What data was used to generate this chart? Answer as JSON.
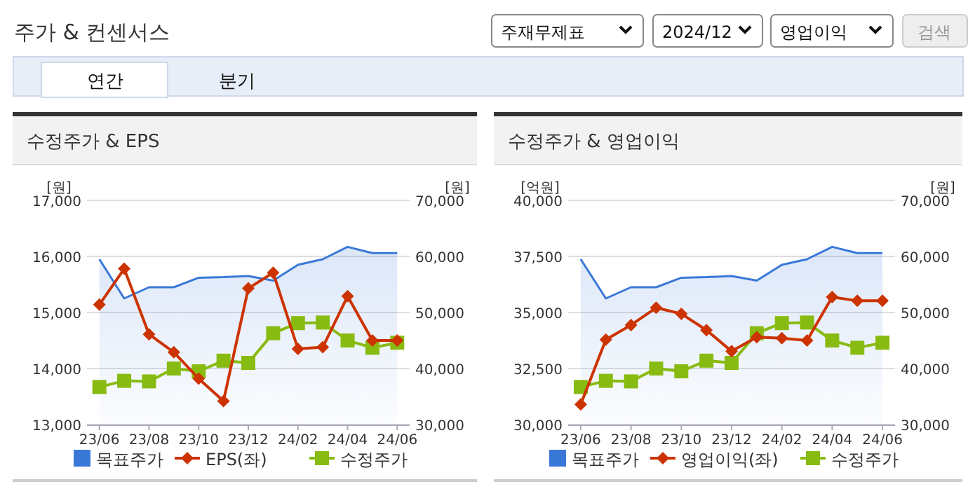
{
  "chart_data": [
    {
      "type": "other",
      "title": "주가 & 컨센서스",
      "annotations": [
        "주재무제표",
        "2024/12",
        "영업이익",
        "검색",
        "연간",
        "분기"
      ]
    },
    {
      "type": "line",
      "title": "수정주가 & EPS",
      "ylabel": "[원]",
      "y2label": "[원]",
      "categories": [
        "23/06",
        null,
        "23/08",
        null,
        "23/10",
        null,
        "23/12",
        null,
        "24/02",
        null,
        "24/04",
        null,
        "24/06"
      ],
      "ylim": [
        13000,
        17000
      ],
      "yticks": [
        {
          "value": 13000,
          "label": "13,000"
        },
        {
          "value": 14000,
          "label": "14,000"
        },
        {
          "value": 15000,
          "label": "15,000"
        },
        {
          "value": 16000,
          "label": "16,000"
        },
        {
          "value": 17000,
          "label": "17,000"
        }
      ],
      "y2lim": [
        30000,
        70000
      ],
      "y2ticks": [
        {
          "value": 30000,
          "label": "30,000"
        },
        {
          "value": 40000,
          "label": "40,000"
        },
        {
          "value": 50000,
          "label": "50,000"
        },
        {
          "value": 60000,
          "label": "60,000"
        },
        {
          "value": 70000,
          "label": "70,000"
        }
      ],
      "grid": "y",
      "legend": "bottom",
      "series": [
        {
          "name": "목표주가",
          "type": "area",
          "axis": "y2",
          "color": "#3a78d8",
          "values": [
            59500,
            52500,
            54500,
            54500,
            56200,
            56300,
            56500,
            55700,
            58500,
            59500,
            61700,
            60600,
            60600
          ]
        },
        {
          "name": "EPS(좌)",
          "type": "line",
          "marker": "diamond",
          "color": "#cc3300",
          "values": [
            15140,
            15780,
            14610,
            14290,
            13820,
            13420,
            15430,
            15710,
            14350,
            14380,
            15290,
            14500,
            14500
          ]
        },
        {
          "name": "수정주가",
          "type": "line",
          "marker": "square",
          "axis": "y2",
          "color": "#88bb11",
          "values": [
            36700,
            37800,
            37700,
            40000,
            39500,
            41400,
            41000,
            46300,
            48100,
            48200,
            45000,
            43700,
            44600
          ]
        }
      ]
    },
    {
      "type": "line",
      "title": "수정주가 & 영업이익",
      "ylabel": "[억원]",
      "y2label": "[원]",
      "categories": [
        "23/06",
        null,
        "23/08",
        null,
        "23/10",
        null,
        "23/12",
        null,
        "24/02",
        null,
        "24/04",
        null,
        "24/06"
      ],
      "ylim": [
        30000,
        40000
      ],
      "yticks": [
        {
          "value": 30000,
          "label": "30,000"
        },
        {
          "value": 32500,
          "label": "32,500"
        },
        {
          "value": 35000,
          "label": "35,000"
        },
        {
          "value": 37500,
          "label": "37,500"
        },
        {
          "value": 40000,
          "label": "40,000"
        }
      ],
      "y2lim": [
        30000,
        70000
      ],
      "y2ticks": [
        {
          "value": 30000,
          "label": "30,000"
        },
        {
          "value": 40000,
          "label": "40,000"
        },
        {
          "value": 50000,
          "label": "50,000"
        },
        {
          "value": 60000,
          "label": "60,000"
        },
        {
          "value": 70000,
          "label": "70,000"
        }
      ],
      "grid": "y",
      "legend": "bottom",
      "series": [
        {
          "name": "목표주가",
          "type": "area",
          "axis": "y2",
          "color": "#3a78d8",
          "values": [
            59500,
            52500,
            54500,
            54500,
            56200,
            56300,
            56500,
            55700,
            58500,
            59500,
            61700,
            60600,
            60600
          ]
        },
        {
          "name": "영업이익(좌)",
          "type": "line",
          "marker": "diamond",
          "color": "#cc3300",
          "values": [
            30900,
            33790,
            34440,
            35210,
            34940,
            34210,
            33270,
            33900,
            33850,
            33750,
            35690,
            35520,
            35520
          ]
        },
        {
          "name": "수정주가",
          "type": "line",
          "marker": "square",
          "axis": "y2",
          "color": "#88bb11",
          "values": [
            36700,
            37800,
            37700,
            40000,
            39500,
            41400,
            41000,
            46300,
            48100,
            48200,
            45000,
            43700,
            44600
          ]
        }
      ]
    }
  ]
}
